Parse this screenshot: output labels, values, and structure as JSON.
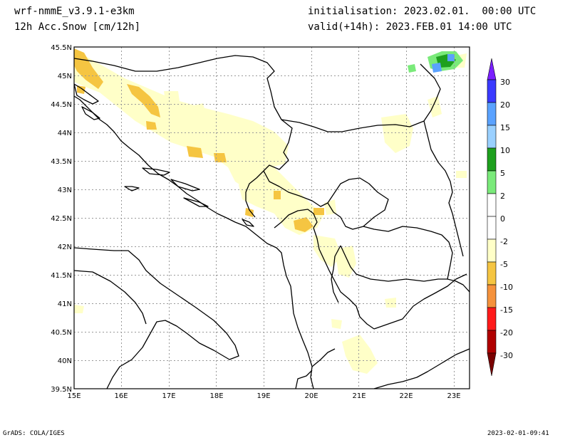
{
  "header": {
    "model": "wrf-nmmE_v3.9.1-e3km",
    "field": "12h Acc.Snow [cm/12h]",
    "init": "initialisation: 2023.02.01.  00:00 UTC",
    "valid": "valid(+14h): 2023.FEB.01 14:00 UTC"
  },
  "footer": {
    "credit": "GrADS: COLA/IGES",
    "timestamp": "2023-02-01-09:41"
  },
  "axes": {
    "lon_ticks": [
      "15E",
      "16E",
      "17E",
      "18E",
      "19E",
      "20E",
      "21E",
      "22E",
      "23E"
    ],
    "lat_ticks": [
      "45.5N",
      "45N",
      "44.5N",
      "44N",
      "43.5N",
      "43N",
      "42.5N",
      "42N",
      "41.5N",
      "41N",
      "40.5N",
      "40N",
      "39.5N"
    ]
  },
  "colorbar": {
    "labels": [
      "30",
      "20",
      "15",
      "10",
      "5",
      "2",
      "0",
      "-2",
      "-5",
      "-10",
      "-15",
      "-20",
      "-30"
    ],
    "colors": [
      "#7a1fff",
      "#3a3aff",
      "#5aa2ff",
      "#9ad0ff",
      "#1ea01e",
      "#7aea7a",
      "#ffffff",
      "#ffffff",
      "#ffffc8",
      "#f5c542",
      "#f5923c",
      "#ff1a1a",
      "#b00000",
      "#7a0000"
    ]
  },
  "map": {
    "region": "Adriatic / Western Balkans",
    "lon_range": [
      15,
      23.3
    ],
    "lat_range": [
      39.5,
      45.5
    ],
    "colors": {
      "light_snow": "#ffffc8",
      "moderate_snow": "#f5c542",
      "positive_green": "#1ea01e",
      "positive_lightgreen": "#7aea7a",
      "positive_blue": "#5aa2ff",
      "coast": "#000000",
      "grid": "#999999"
    }
  }
}
